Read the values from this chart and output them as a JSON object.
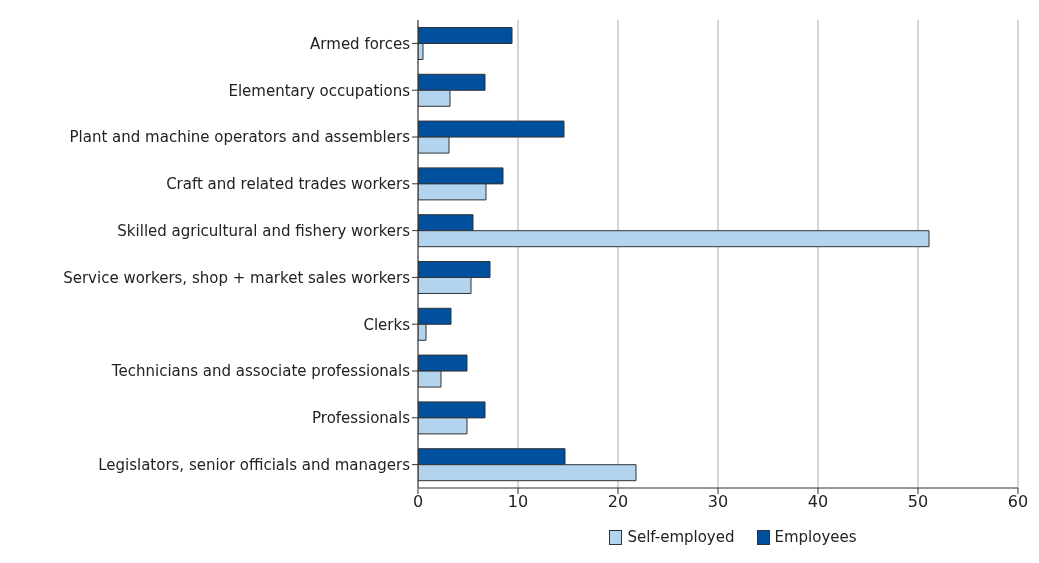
{
  "chart_data": {
    "type": "bar",
    "orientation": "horizontal",
    "categories": [
      "Armed forces",
      "Elementary occupations",
      "Plant and machine operators and assemblers",
      "Craft and related trades workers",
      "Skilled agricultural and fishery workers",
      "Service workers, shop + market sales workers",
      "Clerks",
      "Technicians and associate professionals",
      "Professionals",
      "Legislators, senior officials and managers"
    ],
    "series": [
      {
        "name": "Self-employed",
        "color": "#b3d4ee",
        "values": [
          0.5,
          3.2,
          3.1,
          6.8,
          51.1,
          5.3,
          0.8,
          2.3,
          4.9,
          21.8
        ]
      },
      {
        "name": "Employees",
        "color": "#00509d",
        "values": [
          9.4,
          6.7,
          14.6,
          8.5,
          5.5,
          7.2,
          3.3,
          4.9,
          6.7,
          14.7
        ]
      }
    ],
    "xlim": [
      0,
      60
    ],
    "xticks": [
      0,
      10,
      20,
      30,
      40,
      50,
      60
    ],
    "grid": "x",
    "legend": "bottom"
  }
}
